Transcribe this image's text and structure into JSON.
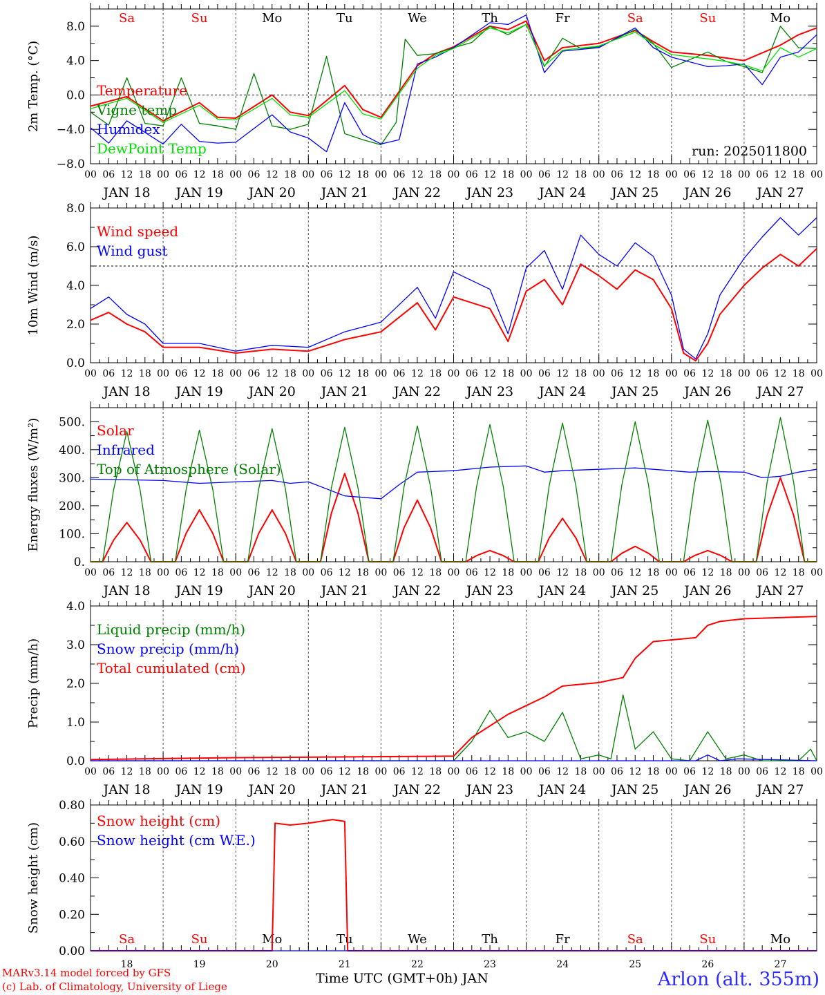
{
  "footer": {
    "model": "MARv3.14 model forced by GFS",
    "credit": "(c) Lab. of Climatology, University of Liege",
    "xaxis_title": "Time UTC (GMT+0h) JAN",
    "station": "Arlon (alt. 355m)"
  },
  "colors": {
    "red": "#ff0000",
    "blue": "#0000ff",
    "green": "#008000",
    "lime": "#00e000",
    "weekend": "#ff0000",
    "weekday": "#000000"
  },
  "chart_data": [
    {
      "type": "line",
      "ylabel": "2m Temp. (°C)",
      "ylim": [
        -8,
        10
      ],
      "yticks": [
        -8,
        -4,
        0,
        4,
        8
      ],
      "ytick_labels": [
        "−8.0",
        "−4.0",
        "0.0",
        "4.0",
        "8.0"
      ],
      "ref_line": 0,
      "annotation": "run: 2025011800",
      "day_names": [
        "Sa",
        "Su",
        "Mo",
        "Tu",
        "We",
        "Th",
        "Fr",
        "Sa",
        "Su",
        "Mo"
      ],
      "weekend": [
        true,
        true,
        false,
        false,
        false,
        false,
        false,
        true,
        true,
        false
      ],
      "date_labels": [
        "JAN 18",
        "JAN 19",
        "JAN 20",
        "JAN 21",
        "JAN 22",
        "JAN 23",
        "JAN 24",
        "JAN 25",
        "JAN 26",
        "JAN 27"
      ],
      "hour_labels": [
        "00",
        "06",
        "12",
        "18"
      ],
      "series": [
        {
          "name": "Temperature",
          "color": "red",
          "x": [
            0,
            12,
            24,
            36,
            42,
            48,
            60,
            66,
            72,
            84,
            90,
            96,
            108,
            114,
            120,
            132,
            138,
            144,
            150,
            156,
            168,
            180,
            186,
            192,
            204,
            210,
            216,
            228,
            234,
            240
          ],
          "y": [
            -1.3,
            -0.2,
            -3.0,
            -0.9,
            -2.6,
            -2.7,
            0.0,
            -2.0,
            -2.4,
            1.1,
            -1.7,
            -2.6,
            3.4,
            4.8,
            5.6,
            8.0,
            7.6,
            8.6,
            4.0,
            5.5,
            6.0,
            7.5,
            6.2,
            5.0,
            4.6,
            4.3,
            4.0,
            5.8,
            7.0,
            7.8
          ]
        },
        {
          "name": "Vigne temp",
          "color": "green",
          "x": [
            0,
            6,
            12,
            18,
            24,
            30,
            36,
            42,
            48,
            54,
            60,
            66,
            72,
            78,
            84,
            90,
            96,
            101,
            104,
            108,
            114,
            120,
            126,
            132,
            138,
            144,
            150,
            156,
            162,
            168,
            180,
            186,
            192,
            204,
            210,
            216,
            222,
            228,
            234,
            240
          ],
          "y": [
            -2.0,
            -3.5,
            2.0,
            -3.3,
            -3.6,
            2.0,
            -3.3,
            -3.6,
            -4.0,
            2.5,
            -3.6,
            -4.0,
            -3.4,
            4.5,
            -4.5,
            -5.2,
            -5.8,
            -3.2,
            6.5,
            4.6,
            4.8,
            5.5,
            6.1,
            8.0,
            7.0,
            8.2,
            3.3,
            6.6,
            5.4,
            5.6,
            7.6,
            6.0,
            3.2,
            5.0,
            3.9,
            3.3,
            2.6,
            8.0,
            5.5,
            5.4
          ]
        },
        {
          "name": "Humidex",
          "color": "blue",
          "x": [
            0,
            6,
            12,
            24,
            30,
            36,
            42,
            48,
            60,
            66,
            72,
            78,
            84,
            90,
            96,
            102,
            108,
            114,
            120,
            132,
            138,
            144,
            150,
            156,
            168,
            180,
            186,
            192,
            204,
            210,
            216,
            222,
            228,
            234,
            240
          ],
          "y": [
            -3.8,
            -5.6,
            -3.0,
            -5.7,
            -3.4,
            -5.4,
            -5.6,
            -5.5,
            -2.3,
            -4.3,
            -5.0,
            -6.6,
            -0.9,
            -4.6,
            -5.7,
            -5.2,
            3.6,
            4.4,
            5.5,
            8.4,
            8.2,
            9.3,
            2.6,
            5.1,
            5.5,
            7.8,
            5.5,
            4.4,
            3.3,
            3.4,
            3.6,
            1.2,
            4.4,
            5.0,
            7.0
          ]
        },
        {
          "name": "DewPoint Temp",
          "color": "lime",
          "x": [
            0,
            12,
            24,
            36,
            42,
            48,
            60,
            66,
            72,
            84,
            90,
            96,
            108,
            114,
            120,
            132,
            138,
            144,
            150,
            156,
            168,
            180,
            186,
            192,
            204,
            210,
            216,
            222,
            228,
            234,
            240
          ],
          "y": [
            -1.6,
            -0.4,
            -3.2,
            -1.2,
            -2.8,
            -2.9,
            -0.4,
            -2.3,
            -2.6,
            0.5,
            -2.2,
            -2.8,
            3.1,
            4.6,
            5.4,
            7.8,
            7.2,
            8.2,
            3.4,
            5.2,
            5.7,
            7.3,
            5.9,
            4.7,
            4.2,
            3.9,
            3.5,
            2.8,
            5.5,
            4.4,
            5.4
          ]
        }
      ]
    },
    {
      "type": "line",
      "ylabel": "10m Wind (m/s)",
      "ylim": [
        0,
        8
      ],
      "yticks": [
        0,
        2,
        4,
        6,
        8
      ],
      "ytick_labels": [
        "0.0",
        "2.0",
        "4.0",
        "6.0",
        "8.0"
      ],
      "ref_line": 5,
      "date_labels": [
        "JAN 18",
        "JAN 19",
        "JAN 20",
        "JAN 21",
        "JAN 22",
        "JAN 23",
        "JAN 24",
        "JAN 25",
        "JAN 26",
        "JAN 27"
      ],
      "hour_labels": [
        "00",
        "06",
        "12",
        "18"
      ],
      "series": [
        {
          "name": "Wind speed",
          "color": "red",
          "x": [
            0,
            6,
            12,
            18,
            24,
            36,
            48,
            60,
            72,
            84,
            96,
            108,
            114,
            120,
            132,
            138,
            144,
            150,
            156,
            162,
            168,
            174,
            180,
            186,
            192,
            196,
            200,
            204,
            208,
            216,
            222,
            228,
            234,
            240
          ],
          "y": [
            2.2,
            2.6,
            2.0,
            1.6,
            0.8,
            0.8,
            0.5,
            0.7,
            0.6,
            1.2,
            1.6,
            3.1,
            1.7,
            3.4,
            2.8,
            1.1,
            3.7,
            4.3,
            3.0,
            5.1,
            4.5,
            3.8,
            4.8,
            4.3,
            2.8,
            0.5,
            0.1,
            1.0,
            2.5,
            4.0,
            4.9,
            5.6,
            5.0,
            5.9
          ]
        },
        {
          "name": "Wind gust",
          "color": "blue",
          "x": [
            0,
            6,
            12,
            18,
            24,
            36,
            48,
            60,
            72,
            84,
            96,
            108,
            114,
            120,
            132,
            138,
            144,
            150,
            156,
            162,
            168,
            174,
            180,
            186,
            192,
            196,
            200,
            204,
            208,
            216,
            222,
            228,
            234,
            240
          ],
          "y": [
            2.8,
            3.4,
            2.5,
            2.0,
            1.0,
            1.0,
            0.6,
            0.9,
            0.8,
            1.6,
            2.1,
            3.9,
            2.3,
            4.7,
            3.8,
            1.5,
            4.9,
            5.8,
            3.8,
            6.6,
            5.6,
            5.0,
            6.2,
            5.5,
            3.5,
            0.7,
            0.2,
            1.5,
            3.5,
            5.4,
            6.5,
            7.5,
            6.6,
            7.5
          ]
        }
      ]
    },
    {
      "type": "line",
      "ylabel": "Energy fluxes (W/m²)",
      "ylim": [
        0,
        550
      ],
      "yticks": [
        0,
        100,
        200,
        300,
        400,
        500
      ],
      "ytick_labels": [
        "0.",
        "100.",
        "200.",
        "300.",
        "400.",
        "500."
      ],
      "date_labels": [
        "JAN 18",
        "JAN 19",
        "JAN 20",
        "JAN 21",
        "JAN 22",
        "JAN 23",
        "JAN 24",
        "JAN 25",
        "JAN 26",
        "JAN 27"
      ],
      "hour_labels": [
        "00",
        "06",
        "12",
        "18"
      ],
      "series": [
        {
          "name": "Solar",
          "color": "red",
          "daily_peak_hour": 12,
          "daily_halfwidth_hours": 8,
          "daily_peaks": [
            140,
            185,
            185,
            315,
            220,
            40,
            155,
            55,
            40,
            300
          ]
        },
        {
          "name": "Infrared",
          "color": "blue",
          "x": [
            0,
            24,
            36,
            48,
            60,
            66,
            72,
            84,
            96,
            102,
            108,
            120,
            132,
            144,
            150,
            156,
            168,
            180,
            192,
            198,
            204,
            216,
            222,
            228,
            234,
            240
          ],
          "y": [
            295,
            290,
            280,
            285,
            290,
            280,
            285,
            235,
            225,
            275,
            320,
            325,
            338,
            342,
            320,
            325,
            330,
            335,
            325,
            320,
            322,
            320,
            300,
            305,
            320,
            330
          ]
        },
        {
          "name": "Top of Atmosphere (Solar)",
          "color": "green",
          "daily_peak_hour": 12,
          "daily_halfwidth_hours": 8,
          "daily_peaks": [
            465,
            470,
            475,
            480,
            485,
            490,
            495,
            500,
            505,
            515
          ]
        }
      ]
    },
    {
      "type": "line",
      "ylabel": "Precip (mm/h)",
      "ylim": [
        0,
        4
      ],
      "yticks": [
        0,
        1,
        2,
        3,
        4
      ],
      "ytick_labels": [
        "0.0",
        "1.0",
        "2.0",
        "3.0",
        "4.0"
      ],
      "date_labels": [
        "JAN 18",
        "JAN 19",
        "JAN 20",
        "JAN 21",
        "JAN 22",
        "JAN 23",
        "JAN 24",
        "JAN 25",
        "JAN 26",
        "JAN 27"
      ],
      "hour_labels": [
        "00",
        "06",
        "12",
        "18"
      ],
      "series": [
        {
          "name": "Liquid precip (mm/h)",
          "color": "green",
          "x": [
            0,
            120,
            126,
            132,
            138,
            144,
            150,
            156,
            162,
            168,
            172,
            176,
            180,
            186,
            192,
            198,
            204,
            210,
            216,
            222,
            228,
            234,
            238,
            240
          ],
          "y": [
            0.0,
            0.0,
            0.5,
            1.3,
            0.6,
            0.75,
            0.5,
            1.25,
            0.05,
            0.15,
            0.05,
            1.7,
            0.3,
            0.75,
            0.05,
            0.0,
            0.75,
            0.05,
            0.15,
            0.0,
            0.0,
            0.0,
            0.3,
            0.0
          ]
        },
        {
          "name": "Snow precip (mm/h)",
          "color": "blue",
          "x": [
            0,
            200,
            204,
            208,
            214,
            240
          ],
          "y": [
            0.0,
            0.0,
            0.15,
            0.0,
            0.05,
            0.0
          ]
        },
        {
          "name": "Total cumulated (cm)",
          "color": "red",
          "x": [
            0,
            48,
            120,
            126,
            138,
            150,
            156,
            168,
            176,
            180,
            186,
            200,
            204,
            208,
            216,
            240
          ],
          "y": [
            0.03,
            0.08,
            0.12,
            0.6,
            1.2,
            1.65,
            1.93,
            2.02,
            2.15,
            2.65,
            3.08,
            3.18,
            3.5,
            3.6,
            3.67,
            3.73
          ]
        }
      ]
    },
    {
      "type": "line",
      "ylabel": "Snow height (cm)",
      "ylim": [
        0,
        0.8
      ],
      "yticks": [
        0,
        0.2,
        0.4,
        0.6,
        0.8
      ],
      "ytick_labels": [
        "0.00",
        "0.20",
        "0.40",
        "0.60",
        "0.80"
      ],
      "day_names": [
        "Sa",
        "Su",
        "Mo",
        "Tu",
        "We",
        "Th",
        "Fr",
        "Sa",
        "Su",
        "Mo"
      ],
      "weekend": [
        true,
        true,
        false,
        false,
        false,
        false,
        false,
        true,
        true,
        false
      ],
      "day_numbers": [
        "18",
        "19",
        "20",
        "21",
        "22",
        "23",
        "24",
        "25",
        "26",
        "27"
      ],
      "series": [
        {
          "name": "Snow height (cm)",
          "color": "red",
          "x": [
            0,
            60,
            61,
            66,
            72,
            80,
            84,
            85,
            240
          ],
          "y": [
            0,
            0,
            0.7,
            0.69,
            0.7,
            0.72,
            0.71,
            0,
            0
          ]
        },
        {
          "name": "Snow height (cm W.E.)",
          "color": "blue",
          "x": [
            0,
            240
          ],
          "y": [
            0,
            0
          ]
        }
      ]
    }
  ]
}
